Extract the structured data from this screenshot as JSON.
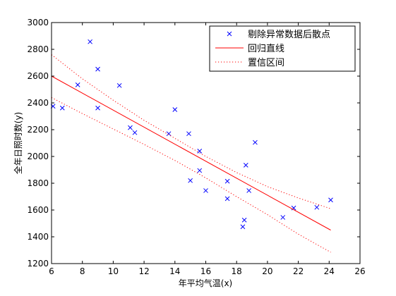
{
  "chart_data": {
    "type": "scatter",
    "xlabel": "年平均气温(x)",
    "ylabel": "全年日照时数(y)",
    "xlim": [
      6,
      26
    ],
    "ylim": [
      1200,
      3000
    ],
    "xticks": [
      "6",
      "8",
      "10",
      "12",
      "14",
      "16",
      "18",
      "20",
      "22",
      "24",
      "26"
    ],
    "yticks": [
      "1200",
      "1400",
      "1600",
      "1800",
      "2000",
      "2200",
      "2400",
      "2600",
      "2800",
      "3000"
    ],
    "grid": false,
    "legend_position": "top-right",
    "legend": [
      {
        "label": "剔除异常数据后散点",
        "style": "marker-x",
        "color": "#0000ff"
      },
      {
        "label": "回归直线",
        "style": "solid",
        "color": "#ff0000"
      },
      {
        "label": "置信区间",
        "style": "dotted",
        "color": "#ff0000"
      }
    ],
    "series": [
      {
        "style": "marker-x",
        "color": "#0000ff",
        "points": [
          [
            6.1,
            2375
          ],
          [
            6.7,
            2362
          ],
          [
            7.7,
            2535
          ],
          [
            8.5,
            2857
          ],
          [
            9.0,
            2652
          ],
          [
            9.0,
            2362
          ],
          [
            10.4,
            2530
          ],
          [
            11.1,
            2215
          ],
          [
            11.4,
            2178
          ],
          [
            13.6,
            2170
          ],
          [
            14.0,
            2350
          ],
          [
            14.9,
            2170
          ],
          [
            15.0,
            1820
          ],
          [
            15.6,
            2040
          ],
          [
            15.6,
            1895
          ],
          [
            16.0,
            1745
          ],
          [
            17.4,
            1815
          ],
          [
            17.4,
            1685
          ],
          [
            18.4,
            1475
          ],
          [
            18.5,
            1525
          ],
          [
            18.6,
            1935
          ],
          [
            18.8,
            1745
          ],
          [
            19.2,
            2105
          ],
          [
            21.0,
            1545
          ],
          [
            21.7,
            1615
          ],
          [
            23.2,
            1620
          ],
          [
            24.1,
            1675
          ]
        ]
      },
      {
        "style": "solid",
        "color": "#ff0000",
        "points": [
          [
            6.0,
            2600
          ],
          [
            24.1,
            1450
          ]
        ]
      },
      {
        "style": "dotted",
        "color": "#ff0000",
        "points": [
          [
            6.0,
            2760
          ],
          [
            8.0,
            2580
          ],
          [
            10.0,
            2420
          ],
          [
            12.0,
            2270
          ],
          [
            14.0,
            2135
          ],
          [
            16.0,
            2000
          ],
          [
            18.0,
            1880
          ],
          [
            20.0,
            1775
          ],
          [
            22.0,
            1690
          ],
          [
            24.1,
            1610
          ]
        ]
      },
      {
        "style": "dotted",
        "color": "#ff0000",
        "points": [
          [
            6.0,
            2440
          ],
          [
            8.0,
            2320
          ],
          [
            10.0,
            2205
          ],
          [
            12.0,
            2090
          ],
          [
            14.0,
            1970
          ],
          [
            16.0,
            1840
          ],
          [
            18.0,
            1700
          ],
          [
            20.0,
            1565
          ],
          [
            22.0,
            1420
          ],
          [
            24.1,
            1285
          ]
        ]
      }
    ]
  }
}
